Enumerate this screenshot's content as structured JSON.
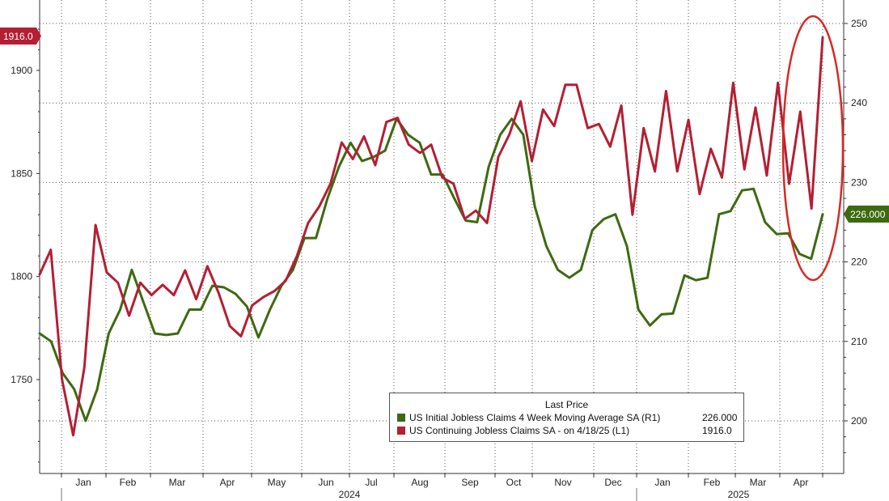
{
  "chart_data": {
    "type": "line",
    "x_tick_labels": [
      "Jan",
      "Feb",
      "Mar",
      "Apr",
      "May",
      "Jun",
      "Jul",
      "Aug",
      "Sep",
      "Oct",
      "Nov",
      "Dec",
      "Jan",
      "Feb",
      "Mar",
      "Apr"
    ],
    "year_labels": [
      "2024",
      "2025"
    ],
    "left_axis": {
      "ticks": [
        1750,
        1800,
        1850,
        1900
      ],
      "ylim": [
        1705,
        1925
      ]
    },
    "right_axis": {
      "ticks": [
        200,
        210,
        220,
        230,
        240,
        250
      ],
      "ylim": [
        195,
        252
      ]
    },
    "legend": {
      "title": "Last Price",
      "entries": [
        {
          "label": "US Initial Jobless Claims 4 Week Moving Average SA  (R1)",
          "value": "226.000",
          "color": "#3d6a10"
        },
        {
          "label": "US Continuing Jobless Claims SA -  on 4/18/25  (L1)",
          "value": "1916.0",
          "color": "#b41f33"
        }
      ]
    },
    "series": [
      {
        "name": "US Initial Jobless Claims 4 Week Moving Average SA",
        "axis": "right",
        "color": "#3d6a10",
        "last_value": "226.000",
        "values": [
          211,
          210,
          206,
          204,
          200,
          204,
          211,
          214,
          219,
          215,
          211,
          210.8,
          211,
          214,
          214,
          217,
          216.8,
          216,
          214.4,
          210.5,
          214,
          217,
          219,
          223,
          223,
          228,
          232,
          235,
          232.7,
          233.2,
          234,
          238,
          236,
          235,
          231,
          231,
          228,
          225.2,
          225,
          232,
          236,
          238,
          236,
          227,
          222,
          219,
          218,
          219,
          224,
          225.4,
          226,
          222,
          214,
          212,
          213.4,
          213.5,
          218.3,
          217.7,
          218,
          226,
          226.4,
          229,
          229.2,
          225,
          223.5,
          223.6,
          221,
          220.4,
          226
        ]
      },
      {
        "name": "US Continuing Jobless Claims SA",
        "axis": "left",
        "color": "#b41f33",
        "last_value": "1916.0",
        "values": [
          1801,
          1813,
          1750,
          1723,
          1756,
          1825,
          1802,
          1797,
          1781,
          1797,
          1791,
          1796,
          1791,
          1803,
          1789,
          1805,
          1792,
          1776,
          1771,
          1786,
          1790,
          1793,
          1798,
          1810,
          1826,
          1834,
          1845,
          1865,
          1857,
          1868,
          1854,
          1875,
          1877,
          1864,
          1860,
          1864,
          1848,
          1845,
          1828,
          1832,
          1826,
          1858,
          1869,
          1885,
          1856,
          1881,
          1873,
          1893,
          1893,
          1872,
          1874,
          1863,
          1883,
          1830,
          1872,
          1851,
          1890,
          1851,
          1876,
          1840,
          1862,
          1848,
          1894,
          1852,
          1882,
          1849,
          1894,
          1845,
          1880,
          1833,
          1916
        ]
      }
    ]
  },
  "labels": {
    "left_tag": "1916.0",
    "right_tag": "226.000"
  }
}
